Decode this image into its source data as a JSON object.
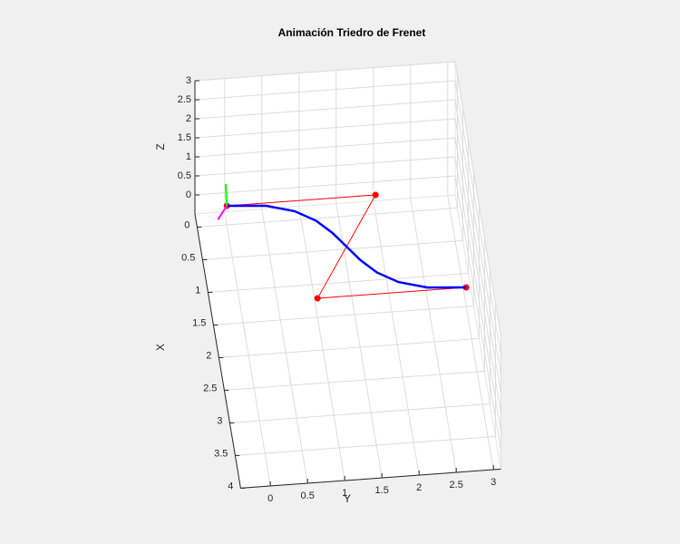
{
  "chart_data": {
    "type": "line3d",
    "title": "Animación Triedro de Frenet",
    "xlabel": "X",
    "ylabel": "Y",
    "zlabel": "Z",
    "xlim": [
      -0.2,
      4
    ],
    "ylim": [
      -0.4,
      3.1
    ],
    "zlim": [
      -0.5,
      3
    ],
    "xticks": [
      0,
      0.5,
      1,
      1.5,
      2,
      2.5,
      3,
      3.5,
      4
    ],
    "yticks": [
      0,
      0.5,
      1,
      1.5,
      2,
      2.5,
      3
    ],
    "zticks": [
      0,
      0.5,
      1,
      1.5,
      2,
      2.5,
      3
    ],
    "grid": true,
    "series": [
      {
        "color": "#ff0000",
        "linewidth": 1,
        "marker": true,
        "x": [
          0,
          0,
          1.5,
          1.5
        ],
        "y": [
          0,
          2,
          1,
          3
        ],
        "z": [
          0,
          0,
          0,
          0
        ]
      },
      {
        "color": "#0000ff",
        "linewidth": 2.5,
        "marker": false,
        "x": [
          0,
          0.042,
          0.156,
          0.324,
          0.528,
          0.75,
          0.972,
          1.176,
          1.344,
          1.458,
          1.5
        ],
        "y": [
          0,
          0.516,
          0.888,
          1.152,
          1.344,
          1.5,
          1.656,
          1.848,
          2.112,
          2.484,
          3
        ],
        "z": [
          0,
          0,
          0,
          0,
          0,
          0,
          0,
          0,
          0,
          0,
          0
        ]
      },
      {
        "color": "#00ff00",
        "linewidth": 2,
        "marker": false,
        "x": [
          0,
          -0.1
        ],
        "y": [
          0,
          0
        ],
        "z": [
          0,
          0.4
        ]
      },
      {
        "color": "#ff00ff",
        "linewidth": 2,
        "marker": false,
        "x": [
          0,
          0.2
        ],
        "y": [
          0,
          -0.15
        ],
        "z": [
          0,
          0
        ]
      }
    ]
  }
}
